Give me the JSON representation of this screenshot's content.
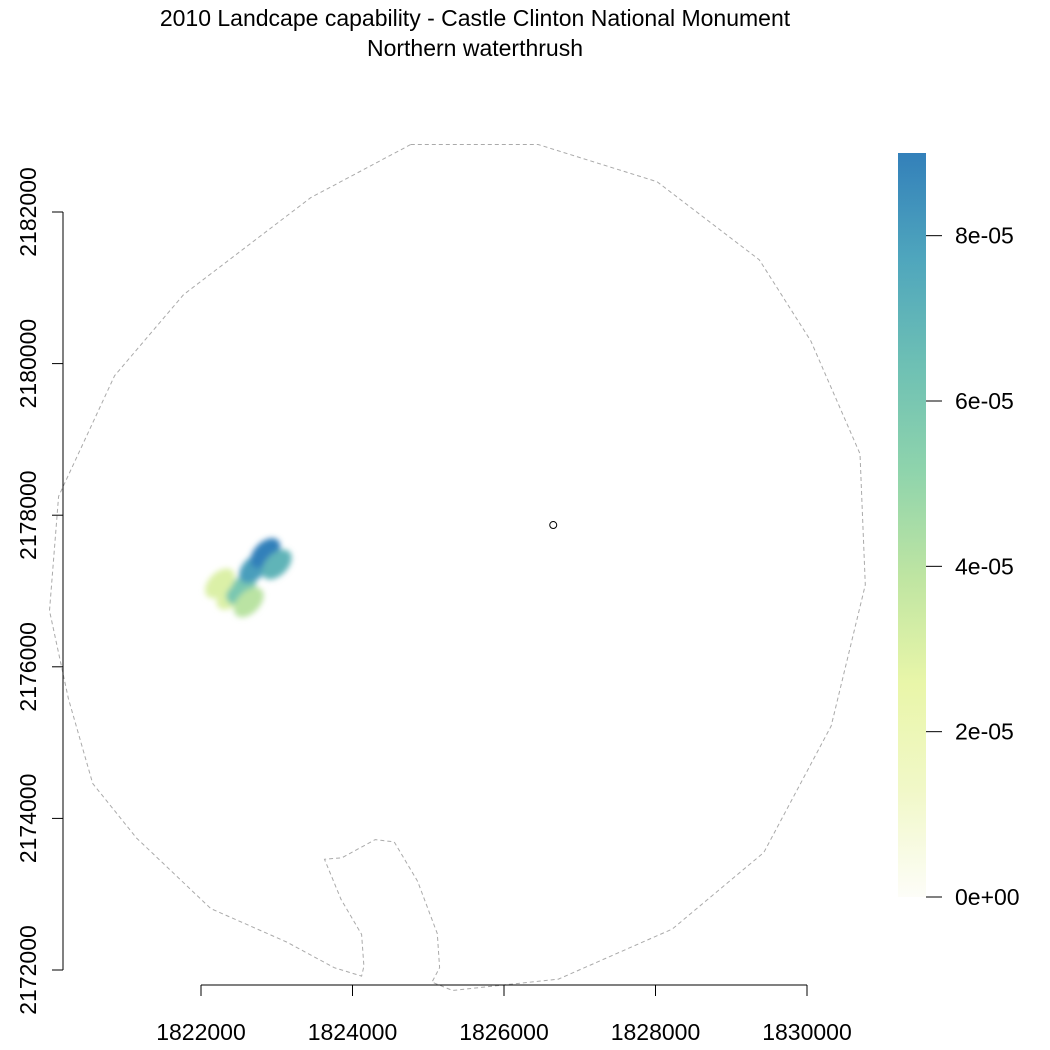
{
  "chart_data": {
    "type": "heatmap",
    "title": "2010 Landcape capability - Castle Clinton National Monument",
    "subtitle": "Northern waterthrush",
    "x_ticks": [
      1822000,
      1824000,
      1826000,
      1828000,
      1830000
    ],
    "y_ticks": [
      2172000,
      2174000,
      2176000,
      2178000,
      2180000,
      2182000
    ],
    "xlim": [
      1822000,
      1830000
    ],
    "ylim": [
      2172000,
      2182000
    ],
    "colorbar": {
      "range": [
        0,
        9e-05
      ],
      "ticks": [
        {
          "value": 0,
          "label": "0e+00"
        },
        {
          "value": 2e-05,
          "label": "2e-05"
        },
        {
          "value": 4e-05,
          "label": "4e-05"
        },
        {
          "value": 6e-05,
          "label": "6e-05"
        },
        {
          "value": 8e-05,
          "label": "8e-05"
        }
      ],
      "colors": [
        "#fdfdf8",
        "#f1f8c8",
        "#e9f6a9",
        "#bfe5a2",
        "#8fd4ac",
        "#6ec0b4",
        "#4fa6bd",
        "#3380ba"
      ]
    },
    "study_area_boundary": [
      [
        1824770,
        2182890
      ],
      [
        1826450,
        2182890
      ],
      [
        1828020,
        2182400
      ],
      [
        1829370,
        2181370
      ],
      [
        1830050,
        2180300
      ],
      [
        1830700,
        2178810
      ],
      [
        1830770,
        2177080
      ],
      [
        1830320,
        2175220
      ],
      [
        1829430,
        2173550
      ],
      [
        1828220,
        2172540
      ],
      [
        1826720,
        2171880
      ],
      [
        1825320,
        2171730
      ],
      [
        1825050,
        2171840
      ],
      [
        1825150,
        2172030
      ],
      [
        1825120,
        2172480
      ],
      [
        1824860,
        2173170
      ],
      [
        1824550,
        2173690
      ],
      [
        1824300,
        2173720
      ],
      [
        1823860,
        2173480
      ],
      [
        1823630,
        2173460
      ],
      [
        1823850,
        2172930
      ],
      [
        1824120,
        2172470
      ],
      [
        1824150,
        2172050
      ],
      [
        1824120,
        2171920
      ],
      [
        1823760,
        2172030
      ],
      [
        1823130,
        2172370
      ],
      [
        1822130,
        2172810
      ],
      [
        1821150,
        2173740
      ],
      [
        1820570,
        2174460
      ],
      [
        1820250,
        2175580
      ],
      [
        1820000,
        2176740
      ],
      [
        1820120,
        2178250
      ],
      [
        1820860,
        2179840
      ],
      [
        1821770,
        2180910
      ],
      [
        1823450,
        2182190
      ]
    ],
    "monument_point": [
      1826650,
      2177870
    ],
    "raster_patches": [
      {
        "x": 1822400,
        "y": 2176950,
        "value": 3e-05
      },
      {
        "x": 1822530,
        "y": 2177020,
        "value": 6e-05
      },
      {
        "x": 1822700,
        "y": 2177300,
        "value": 8e-05
      },
      {
        "x": 1822850,
        "y": 2177500,
        "value": 9e-05
      },
      {
        "x": 1823000,
        "y": 2177350,
        "value": 7e-05
      },
      {
        "x": 1822630,
        "y": 2176850,
        "value": 4e-05
      },
      {
        "x": 1822250,
        "y": 2177100,
        "value": 3e-05
      }
    ]
  }
}
